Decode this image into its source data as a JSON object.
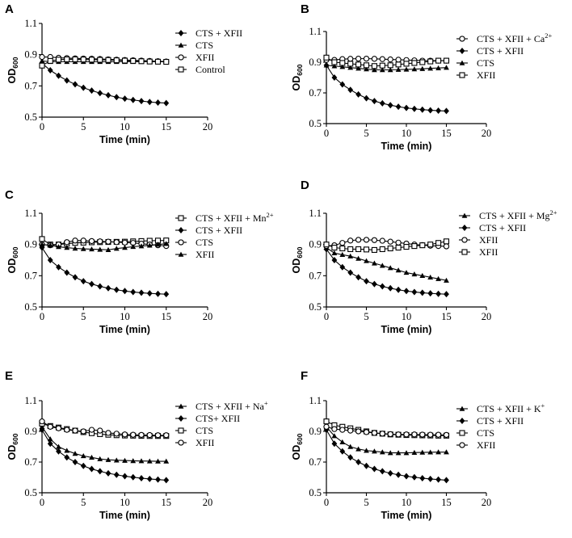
{
  "chart_data": [
    {
      "type": "line",
      "panel": "A",
      "xlabel": "Time (min)",
      "ylabel": "OD",
      "ylabel_sub": "600",
      "xlim": [
        0,
        20
      ],
      "ylim": [
        0.5,
        1.1
      ],
      "xticks": [
        "0",
        "5",
        "10",
        "15",
        "20"
      ],
      "yticks": [
        "0.5",
        "0.7",
        "0.9",
        "1.1"
      ],
      "x": [
        0,
        1,
        2,
        3,
        4,
        5,
        6,
        7,
        8,
        9,
        10,
        11,
        12,
        13,
        14,
        15
      ],
      "series": [
        {
          "name": "CTS + XFII",
          "marker": "diamond",
          "values": [
            0.845,
            0.8,
            0.765,
            0.735,
            0.71,
            0.688,
            0.67,
            0.654,
            0.64,
            0.628,
            0.618,
            0.61,
            0.603,
            0.597,
            0.593,
            0.59
          ]
        },
        {
          "name": "CTS",
          "marker": "triangle",
          "values": [
            0.86,
            0.855,
            0.855,
            0.855,
            0.855,
            0.855,
            0.855,
            0.855,
            0.855,
            0.855,
            0.855,
            0.855,
            0.855,
            0.855,
            0.855,
            0.855
          ]
        },
        {
          "name": "XFII",
          "marker": "circle",
          "values": [
            0.885,
            0.885,
            0.88,
            0.878,
            0.876,
            0.875,
            0.874,
            0.872,
            0.87,
            0.868,
            0.866,
            0.864,
            0.862,
            0.86,
            0.858,
            0.856
          ]
        },
        {
          "name": "Control",
          "marker": "square",
          "values": [
            0.83,
            0.86,
            0.868,
            0.87,
            0.87,
            0.869,
            0.868,
            0.867,
            0.866,
            0.864,
            0.862,
            0.86,
            0.858,
            0.856,
            0.855,
            0.854
          ]
        }
      ],
      "legend": [
        "CTS + XFII",
        "CTS",
        "XFII",
        "Control"
      ]
    },
    {
      "type": "line",
      "panel": "B",
      "xlabel": "Time (min)",
      "ylabel": "OD",
      "ylabel_sub": "600",
      "xlim": [
        0,
        20
      ],
      "ylim": [
        0.5,
        1.1
      ],
      "xticks": [
        "0",
        "5",
        "10",
        "15",
        "20"
      ],
      "yticks": [
        "0.5",
        "0.7",
        "0.9",
        "1.1"
      ],
      "x": [
        0,
        1,
        2,
        3,
        4,
        5,
        6,
        7,
        8,
        9,
        10,
        11,
        12,
        13,
        14,
        15
      ],
      "series": [
        {
          "name": "CTS + XFII + Ca2+",
          "marker": "circle",
          "values": [
            0.915,
            0.915,
            0.92,
            0.922,
            0.923,
            0.923,
            0.922,
            0.92,
            0.918,
            0.916,
            0.914,
            0.912,
            0.91,
            0.91,
            0.91,
            0.91
          ]
        },
        {
          "name": "CTS + XFII",
          "marker": "diamond",
          "values": [
            0.88,
            0.8,
            0.755,
            0.72,
            0.69,
            0.665,
            0.647,
            0.632,
            0.62,
            0.61,
            0.602,
            0.596,
            0.591,
            0.587,
            0.584,
            0.582
          ]
        },
        {
          "name": "CTS",
          "marker": "triangle",
          "values": [
            0.88,
            0.875,
            0.87,
            0.865,
            0.86,
            0.855,
            0.85,
            0.85,
            0.85,
            0.852,
            0.853,
            0.855,
            0.857,
            0.86,
            0.862,
            0.865
          ]
        },
        {
          "name": "XFII",
          "marker": "square",
          "values": [
            0.93,
            0.9,
            0.895,
            0.89,
            0.885,
            0.88,
            0.875,
            0.878,
            0.88,
            0.885,
            0.89,
            0.895,
            0.9,
            0.905,
            0.91,
            0.91
          ]
        }
      ],
      "legend": [
        "CTS + XFII + Ca",
        "CTS + XFII",
        "CTS",
        "XFII"
      ],
      "legend_sup": [
        "2+",
        "",
        "",
        ""
      ]
    },
    {
      "type": "line",
      "panel": "C",
      "xlabel": "Time (min)",
      "ylabel": "OD",
      "ylabel_sub": "600",
      "xlim": [
        0,
        20
      ],
      "ylim": [
        0.5,
        1.1
      ],
      "xticks": [
        "0",
        "5",
        "10",
        "15",
        "20"
      ],
      "yticks": [
        "0.5",
        "0.7",
        "0.9",
        "1.1"
      ],
      "x": [
        0,
        1,
        2,
        3,
        4,
        5,
        6,
        7,
        8,
        9,
        10,
        11,
        12,
        13,
        14,
        15
      ],
      "series": [
        {
          "name": "CTS + XFII + Mn2+",
          "marker": "square",
          "values": [
            0.935,
            0.9,
            0.9,
            0.905,
            0.91,
            0.912,
            0.914,
            0.915,
            0.916,
            0.917,
            0.918,
            0.92,
            0.922,
            0.924,
            0.925,
            0.926
          ]
        },
        {
          "name": "CTS + XFII",
          "marker": "diamond",
          "values": [
            0.88,
            0.8,
            0.755,
            0.72,
            0.69,
            0.665,
            0.647,
            0.632,
            0.62,
            0.61,
            0.602,
            0.596,
            0.591,
            0.587,
            0.584,
            0.582
          ]
        },
        {
          "name": "CTS",
          "marker": "circle",
          "values": [
            0.9,
            0.895,
            0.9,
            0.915,
            0.925,
            0.925,
            0.922,
            0.92,
            0.918,
            0.915,
            0.912,
            0.91,
            0.905,
            0.9,
            0.895,
            0.89
          ]
        },
        {
          "name": "XFII",
          "marker": "triangle",
          "values": [
            0.9,
            0.895,
            0.885,
            0.88,
            0.875,
            0.872,
            0.87,
            0.868,
            0.866,
            0.874,
            0.88,
            0.886,
            0.89,
            0.894,
            0.9,
            0.905
          ]
        }
      ],
      "legend": [
        "CTS + XFII + Mn",
        "CTS + XFII",
        "CTS",
        "XFII"
      ],
      "legend_sup": [
        "2+",
        "",
        "",
        ""
      ]
    },
    {
      "type": "line",
      "panel": "D",
      "xlabel": "Time (min)",
      "ylabel": "OD",
      "ylabel_sub": "600",
      "xlim": [
        0,
        20
      ],
      "ylim": [
        0.5,
        1.1
      ],
      "xticks": [
        "0",
        "5",
        "10",
        "15",
        "20"
      ],
      "yticks": [
        "0.5",
        "0.7",
        "0.9",
        "1.1"
      ],
      "x": [
        0,
        1,
        2,
        3,
        4,
        5,
        6,
        7,
        8,
        9,
        10,
        11,
        12,
        13,
        14,
        15
      ],
      "series": [
        {
          "name": "CTS + XFII + Mg2+",
          "marker": "triangle",
          "values": [
            0.88,
            0.845,
            0.835,
            0.825,
            0.81,
            0.795,
            0.78,
            0.765,
            0.75,
            0.735,
            0.72,
            0.71,
            0.7,
            0.69,
            0.68,
            0.67
          ]
        },
        {
          "name": "CTS + XFII",
          "marker": "diamond",
          "values": [
            0.87,
            0.8,
            0.755,
            0.72,
            0.69,
            0.665,
            0.647,
            0.632,
            0.62,
            0.61,
            0.602,
            0.596,
            0.591,
            0.587,
            0.584,
            0.582
          ]
        },
        {
          "name": "XFII",
          "marker": "circle",
          "values": [
            0.89,
            0.895,
            0.91,
            0.925,
            0.93,
            0.93,
            0.928,
            0.924,
            0.918,
            0.912,
            0.906,
            0.9,
            0.896,
            0.892,
            0.89,
            0.888
          ]
        },
        {
          "name": "XFII",
          "marker": "square",
          "values": [
            0.9,
            0.88,
            0.875,
            0.87,
            0.87,
            0.868,
            0.865,
            0.87,
            0.875,
            0.88,
            0.885,
            0.89,
            0.895,
            0.9,
            0.91,
            0.92
          ]
        }
      ],
      "legend": [
        "CTS + XFII + Mg",
        "CTS + XFII",
        "XFII",
        "XFII"
      ],
      "legend_sup": [
        "2+",
        "",
        "",
        ""
      ]
    },
    {
      "type": "line",
      "panel": "E",
      "xlabel": "Time (min)",
      "ylabel": "OD",
      "ylabel_sub": "600",
      "xlim": [
        0,
        20
      ],
      "ylim": [
        0.5,
        1.1
      ],
      "xticks": [
        "0",
        "5",
        "10",
        "15",
        "20"
      ],
      "yticks": [
        "0.5",
        "0.7",
        "0.9",
        "1.1"
      ],
      "x": [
        0,
        1,
        2,
        3,
        4,
        5,
        6,
        7,
        8,
        9,
        10,
        11,
        12,
        13,
        14,
        15
      ],
      "series": [
        {
          "name": "CTS + XFII + Na+",
          "marker": "triangle",
          "values": [
            0.93,
            0.85,
            0.8,
            0.775,
            0.755,
            0.74,
            0.73,
            0.72,
            0.715,
            0.712,
            0.71,
            0.708,
            0.707,
            0.706,
            0.705,
            0.705
          ]
        },
        {
          "name": "CTS+ XFII",
          "marker": "diamond",
          "values": [
            0.91,
            0.82,
            0.77,
            0.73,
            0.7,
            0.675,
            0.655,
            0.64,
            0.627,
            0.617,
            0.608,
            0.601,
            0.595,
            0.59,
            0.586,
            0.582
          ]
        },
        {
          "name": "CTS",
          "marker": "square",
          "values": [
            0.95,
            0.935,
            0.925,
            0.915,
            0.905,
            0.895,
            0.888,
            0.882,
            0.878,
            0.875,
            0.873,
            0.872,
            0.871,
            0.87,
            0.87,
            0.87
          ]
        },
        {
          "name": "XFII",
          "marker": "circle",
          "values": [
            0.965,
            0.93,
            0.92,
            0.91,
            0.905,
            0.9,
            0.91,
            0.905,
            0.89,
            0.885,
            0.88,
            0.878,
            0.877,
            0.876,
            0.875,
            0.875
          ]
        }
      ],
      "legend": [
        "CTS + XFII + Na",
        "CTS+ XFII",
        "CTS",
        "XFII"
      ],
      "legend_sup": [
        "+",
        "",
        "",
        ""
      ]
    },
    {
      "type": "line",
      "panel": "F",
      "xlabel": "Time (min)",
      "ylabel": "OD",
      "ylabel_sub": "600",
      "xlim": [
        0,
        20
      ],
      "ylim": [
        0.5,
        1.1
      ],
      "xticks": [
        "0",
        "5",
        "10",
        "15",
        "20"
      ],
      "yticks": [
        "0.5",
        "0.7",
        "0.9",
        "1.1"
      ],
      "x": [
        0,
        1,
        2,
        3,
        4,
        5,
        6,
        7,
        8,
        9,
        10,
        11,
        12,
        13,
        14,
        15
      ],
      "series": [
        {
          "name": "CTS + XFII + K+",
          "marker": "triangle",
          "values": [
            0.93,
            0.87,
            0.83,
            0.8,
            0.785,
            0.775,
            0.77,
            0.765,
            0.76,
            0.76,
            0.76,
            0.762,
            0.763,
            0.764,
            0.765,
            0.765
          ]
        },
        {
          "name": "CTS + XFII",
          "marker": "diamond",
          "values": [
            0.91,
            0.82,
            0.77,
            0.73,
            0.7,
            0.675,
            0.655,
            0.64,
            0.627,
            0.617,
            0.608,
            0.601,
            0.595,
            0.59,
            0.586,
            0.582
          ]
        },
        {
          "name": "CTS",
          "marker": "square",
          "values": [
            0.965,
            0.94,
            0.93,
            0.92,
            0.91,
            0.9,
            0.89,
            0.885,
            0.88,
            0.878,
            0.876,
            0.875,
            0.874,
            0.873,
            0.872,
            0.872
          ]
        },
        {
          "name": "XFII",
          "marker": "circle",
          "values": [
            0.93,
            0.915,
            0.91,
            0.905,
            0.9,
            0.895,
            0.89,
            0.885,
            0.882,
            0.88,
            0.88,
            0.88,
            0.879,
            0.878,
            0.878,
            0.877
          ]
        }
      ],
      "legend": [
        "CTS + XFII + K",
        "CTS + XFII",
        "CTS",
        "XFII"
      ],
      "legend_sup": [
        "+",
        "",
        "",
        ""
      ]
    }
  ]
}
